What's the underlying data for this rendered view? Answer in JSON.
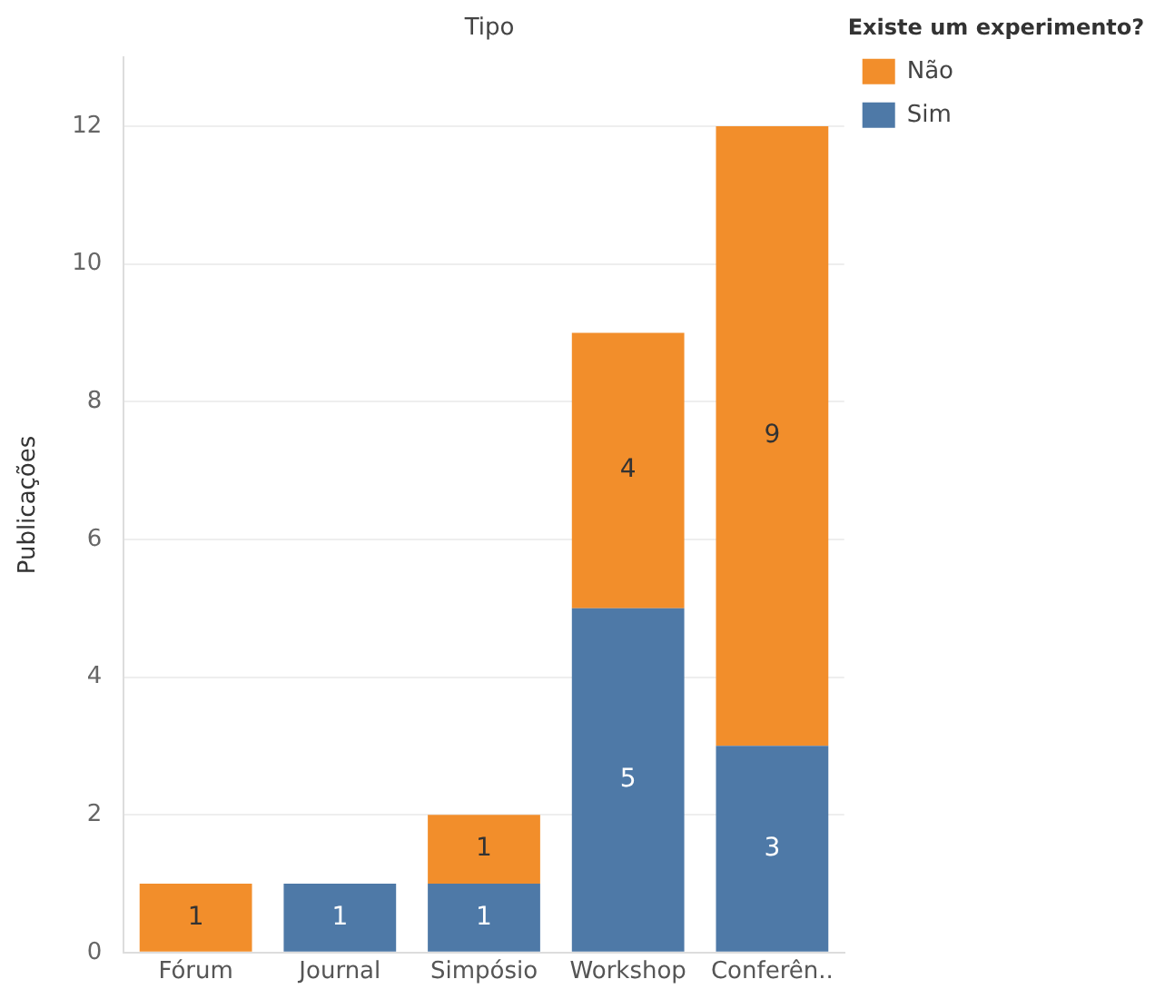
{
  "chart_data": {
    "type": "bar",
    "title": "Tipo",
    "ylabel": "Publicações",
    "legend_title": "Existe um experimento?",
    "categories": [
      "Fórum",
      "Journal",
      "Simpósio",
      "Workshop",
      "Conferên.."
    ],
    "series": [
      {
        "name": "Sim",
        "color": "#4e79a7",
        "values": [
          null,
          1,
          1,
          5,
          3
        ]
      },
      {
        "name": "Não",
        "color": "#f28e2b",
        "values": [
          1,
          null,
          1,
          4,
          9
        ]
      }
    ],
    "stacked": true,
    "ylim": [
      0,
      13
    ],
    "yticks": [
      0,
      2,
      4,
      6,
      8,
      10,
      12
    ],
    "grid": "y",
    "legend": "top right",
    "data_labels": true
  }
}
